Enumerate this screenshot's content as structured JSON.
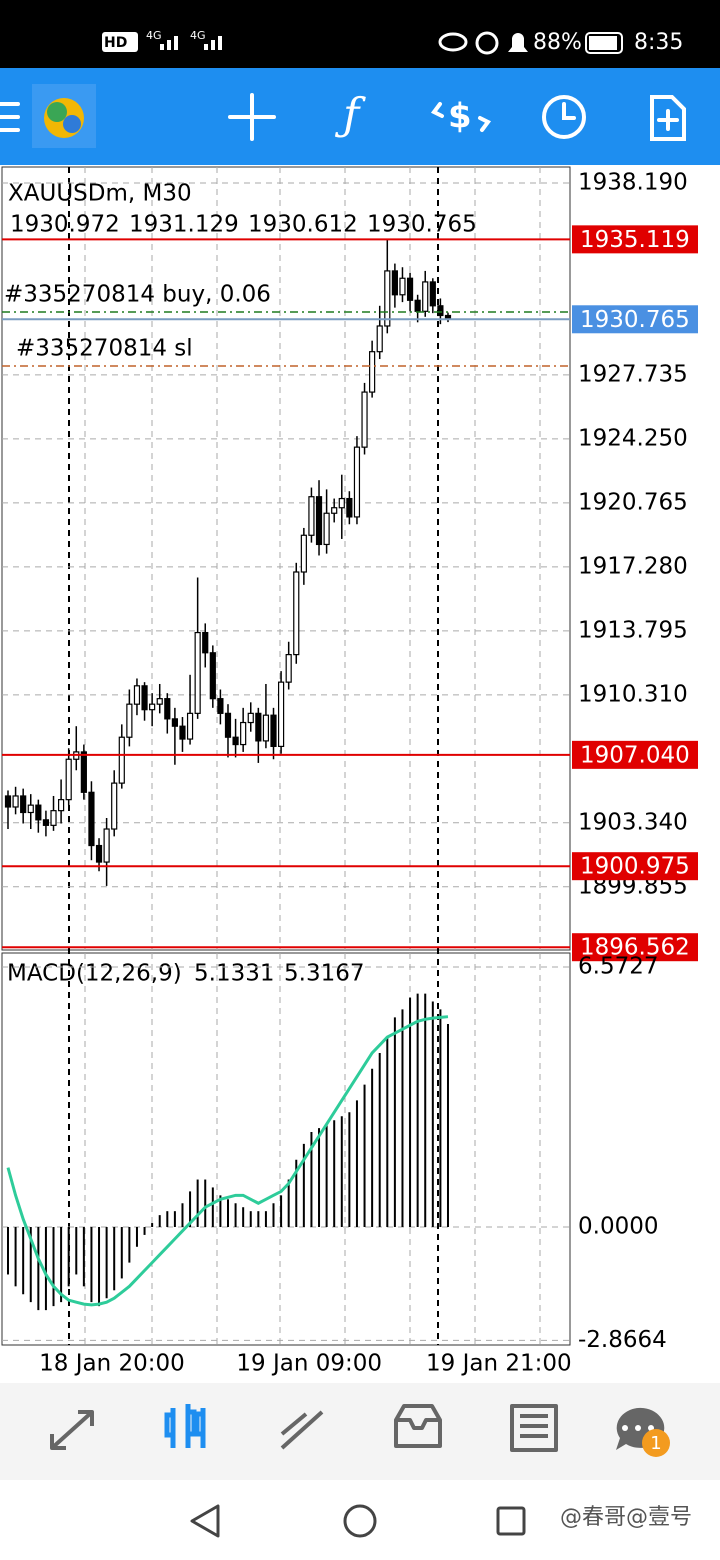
{
  "status_bar": {
    "hd": "HD",
    "network": [
      "4G",
      "4G"
    ],
    "battery": "88%",
    "time": "8:35"
  },
  "nav_badge": "1",
  "watermark": "@春哥@壹号",
  "chart_data": [
    {
      "type": "candlestick",
      "symbol": "XAUUSDm, M30",
      "categories": [
        null,
        null,
        "18 Jan 20:00",
        null,
        null,
        null,
        null,
        null,
        null,
        null,
        null,
        null,
        null,
        null,
        null,
        null,
        null,
        null,
        null,
        null,
        null,
        null,
        null,
        null,
        null,
        null,
        null,
        null,
        "19 Jan 09:00",
        null,
        null,
        null,
        null,
        null,
        null,
        null,
        null,
        null,
        null,
        null,
        null,
        null,
        null,
        null,
        null,
        null,
        null,
        null,
        null,
        null,
        null,
        null,
        null,
        "19 Jan 21:00",
        null,
        null,
        null,
        null,
        null
      ],
      "candles": [
        [
          1904.8,
          1905.1,
          1903.0,
          1904.2
        ],
        [
          1904.2,
          1905.3,
          1903.8,
          1904.8
        ],
        [
          1904.8,
          1905.2,
          1903.3,
          1903.9
        ],
        [
          1903.9,
          1904.9,
          1903.0,
          1904.3
        ],
        [
          1904.3,
          1904.6,
          1902.8,
          1903.5
        ],
        [
          1903.5,
          1904.0,
          1902.6,
          1903.2
        ],
        [
          1903.2,
          1904.8,
          1902.9,
          1904.0
        ],
        [
          1904.0,
          1905.7,
          1903.3,
          1904.6
        ],
        [
          1904.6,
          1907.4,
          1904.3,
          1906.8
        ],
        [
          1906.8,
          1908.6,
          1906.2,
          1907.2
        ],
        [
          1907.2,
          1907.6,
          1904.6,
          1905.0
        ],
        [
          1905.0,
          1905.6,
          1901.3,
          1902.1
        ],
        [
          1902.1,
          1902.5,
          1900.7,
          1901.2
        ],
        [
          1901.2,
          1903.6,
          1899.9,
          1903.0
        ],
        [
          1903.0,
          1906.2,
          1902.6,
          1905.5
        ],
        [
          1905.5,
          1908.7,
          1905.2,
          1908.0
        ],
        [
          1908.0,
          1910.6,
          1907.5,
          1909.8
        ],
        [
          1909.8,
          1911.2,
          1909.2,
          1910.8
        ],
        [
          1910.8,
          1911.0,
          1908.9,
          1909.5
        ],
        [
          1909.5,
          1910.4,
          1908.6,
          1909.8
        ],
        [
          1909.8,
          1910.9,
          1909.3,
          1910.1
        ],
        [
          1910.1,
          1910.4,
          1908.2,
          1909.0
        ],
        [
          1909.0,
          1909.6,
          1906.5,
          1908.6
        ],
        [
          1908.6,
          1909.1,
          1907.2,
          1907.9
        ],
        [
          1907.9,
          1911.4,
          1907.6,
          1909.3
        ],
        [
          1909.3,
          1916.7,
          1909.0,
          1913.7
        ],
        [
          1913.7,
          1914.2,
          1911.8,
          1912.6
        ],
        [
          1912.6,
          1913.0,
          1909.6,
          1910.1
        ],
        [
          1910.1,
          1910.6,
          1908.7,
          1909.3
        ],
        [
          1909.3,
          1909.8,
          1906.9,
          1908.0
        ],
        [
          1908.0,
          1909.0,
          1906.9,
          1907.6
        ],
        [
          1907.6,
          1909.6,
          1907.2,
          1908.8
        ],
        [
          1908.8,
          1909.9,
          1908.3,
          1909.3
        ],
        [
          1909.3,
          1909.6,
          1906.6,
          1907.8
        ],
        [
          1907.8,
          1910.9,
          1907.4,
          1909.2
        ],
        [
          1909.2,
          1909.6,
          1906.8,
          1907.5
        ],
        [
          1907.5,
          1911.6,
          1907.1,
          1911.0
        ],
        [
          1911.0,
          1913.2,
          1910.6,
          1912.5
        ],
        [
          1912.5,
          1917.5,
          1912.0,
          1917.0
        ],
        [
          1917.0,
          1919.4,
          1916.3,
          1919.0
        ],
        [
          1919.0,
          1921.6,
          1918.6,
          1921.1
        ],
        [
          1921.1,
          1922.0,
          1917.9,
          1918.5
        ],
        [
          1918.5,
          1921.5,
          1918.0,
          1920.2
        ],
        [
          1920.2,
          1921.0,
          1919.7,
          1920.5
        ],
        [
          1920.5,
          1922.3,
          1918.8,
          1921.0
        ],
        [
          1921.0,
          1921.4,
          1919.6,
          1920.0
        ],
        [
          1920.0,
          1924.4,
          1919.6,
          1923.8
        ],
        [
          1923.8,
          1927.3,
          1923.4,
          1926.8
        ],
        [
          1926.8,
          1929.6,
          1926.5,
          1929.0
        ],
        [
          1929.0,
          1931.5,
          1928.6,
          1930.4
        ],
        [
          1930.4,
          1935.1,
          1930.0,
          1933.4
        ],
        [
          1933.4,
          1933.8,
          1931.4,
          1932.1
        ],
        [
          1932.1,
          1933.6,
          1931.7,
          1933.0
        ],
        [
          1933.0,
          1933.3,
          1931.2,
          1931.8
        ],
        [
          1931.8,
          1932.1,
          1930.6,
          1931.2
        ],
        [
          1931.2,
          1933.4,
          1930.9,
          1932.8
        ],
        [
          1932.8,
          1933.0,
          1931.1,
          1931.5
        ],
        [
          1931.5,
          1931.9,
          1930.5,
          1930.972
        ],
        [
          1930.972,
          1931.129,
          1930.612,
          1930.765
        ]
      ],
      "color": "#000000",
      "ylim": [
        1896.41,
        1939.06
      ],
      "yticks": [
        {
          "value": 1938.19,
          "label": "1938.190"
        },
        1927.735,
        {
          "value": 1924.25,
          "label": "1924.250"
        },
        1920.765,
        {
          "value": 1917.28,
          "label": "1917.280"
        },
        1913.795,
        {
          "value": 1910.31,
          "label": "1910.310"
        },
        {
          "value": 1903.34,
          "label": "1903.340"
        },
        1899.855
      ],
      "grid": true,
      "levels": [
        1935.119,
        {
          "value": 1907.04,
          "label": "1907.040"
        },
        1900.975,
        1896.562
      ],
      "level_color": "#e00000",
      "bid": 1930.765,
      "bid_color": "#4a90e2",
      "orders": [
        {
          "label": "#335270814 buy, 0.06",
          "price": 1931.16,
          "color": "#1e7a1e"
        },
        {
          "label": "#335270814 sl",
          "price": 1928.22,
          "color": "#c0622a"
        }
      ]
    },
    {
      "type": "macd",
      "title": "MACD(12,26,9)",
      "histogram": [
        -1.2,
        -1.5,
        -1.7,
        -1.9,
        -2.1,
        -2.1,
        -2.0,
        -1.9,
        -1.5,
        -1.2,
        -1.5,
        -1.9,
        -2.0,
        -1.8,
        -1.6,
        -1.3,
        -0.9,
        -0.5,
        -0.2,
        0.1,
        0.3,
        0.4,
        0.4,
        0.6,
        0.9,
        1.2,
        1.2,
        1.0,
        0.8,
        0.7,
        0.6,
        0.5,
        0.4,
        0.4,
        0.4,
        0.6,
        0.8,
        1.2,
        1.7,
        2.1,
        2.4,
        2.5,
        2.6,
        2.7,
        2.8,
        2.9,
        3.2,
        3.6,
        4.0,
        4.4,
        4.8,
        5.3,
        5.5,
        5.8,
        5.9,
        5.9,
        5.7,
        5.5,
        5.1331
      ],
      "signal": [
        1.5,
        0.8,
        0.2,
        -0.3,
        -0.8,
        -1.2,
        -1.5,
        -1.7,
        -1.85,
        -1.9,
        -1.95,
        -1.97,
        -1.95,
        -1.9,
        -1.8,
        -1.65,
        -1.5,
        -1.3,
        -1.1,
        -0.9,
        -0.7,
        -0.5,
        -0.3,
        -0.1,
        0.1,
        0.3,
        0.5,
        0.6,
        0.7,
        0.75,
        0.8,
        0.8,
        0.7,
        0.6,
        0.7,
        0.8,
        0.9,
        1.1,
        1.4,
        1.7,
        2.0,
        2.3,
        2.6,
        2.9,
        3.2,
        3.5,
        3.8,
        4.1,
        4.4,
        4.6,
        4.8,
        4.9,
        5.0,
        5.1,
        5.2,
        5.25,
        5.28,
        5.3,
        5.3167
      ],
      "histogram_color": "#000000",
      "signal_color": "#2ecc9a",
      "ylim": [
        -2.983,
        6.876
      ],
      "yticks": [
        6.5727,
        {
          "value": 0,
          "label": "0.0000"
        },
        -2.8664
      ],
      "grid": true
    }
  ]
}
